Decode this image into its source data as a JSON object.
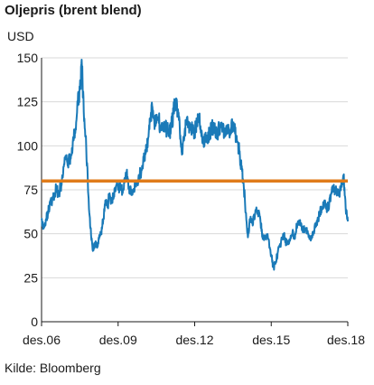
{
  "chart_data": {
    "type": "line",
    "title": "Oljepris (brent blend)",
    "ylabel": "USD",
    "source": "Kilde: Bloomberg",
    "ylim": [
      0,
      150
    ],
    "yticks": [
      0,
      25,
      50,
      75,
      100,
      125,
      150
    ],
    "xlim": [
      "2006-12",
      "2018-12"
    ],
    "xticks": [
      {
        "date": "2006-12",
        "label": "des.06"
      },
      {
        "date": "2009-12",
        "label": "des.09"
      },
      {
        "date": "2012-12",
        "label": "des.12"
      },
      {
        "date": "2015-12",
        "label": "des.15"
      },
      {
        "date": "2018-12",
        "label": "des.18"
      }
    ],
    "grid": "horizontal",
    "series": [
      {
        "color": "#1a7ab8",
        "points": [
          [
            "2006-12",
            58
          ],
          [
            "2007-01",
            53
          ],
          [
            "2007-02",
            58
          ],
          [
            "2007-03",
            62
          ],
          [
            "2007-04",
            67
          ],
          [
            "2007-05",
            69
          ],
          [
            "2007-06",
            71
          ],
          [
            "2007-07",
            77
          ],
          [
            "2007-08",
            72
          ],
          [
            "2007-09",
            77
          ],
          [
            "2007-10",
            82
          ],
          [
            "2007-11",
            92
          ],
          [
            "2007-12",
            91
          ],
          [
            "2008-01",
            92
          ],
          [
            "2008-02",
            95
          ],
          [
            "2008-03",
            103
          ],
          [
            "2008-04",
            110
          ],
          [
            "2008-05",
            123
          ],
          [
            "2008-06",
            133
          ],
          [
            "2008-07",
            145
          ],
          [
            "2008-08",
            114
          ],
          [
            "2008-09",
            100
          ],
          [
            "2008-10",
            72
          ],
          [
            "2008-11",
            53
          ],
          [
            "2008-12",
            41
          ],
          [
            "2009-01",
            44
          ],
          [
            "2009-02",
            43
          ],
          [
            "2009-03",
            47
          ],
          [
            "2009-04",
            50
          ],
          [
            "2009-05",
            58
          ],
          [
            "2009-06",
            69
          ],
          [
            "2009-07",
            65
          ],
          [
            "2009-08",
            73
          ],
          [
            "2009-09",
            68
          ],
          [
            "2009-10",
            73
          ],
          [
            "2009-11",
            77
          ],
          [
            "2009-12",
            75
          ],
          [
            "2010-01",
            77
          ],
          [
            "2010-02",
            74
          ],
          [
            "2010-03",
            79
          ],
          [
            "2010-04",
            85
          ],
          [
            "2010-05",
            76
          ],
          [
            "2010-06",
            75
          ],
          [
            "2010-07",
            75
          ],
          [
            "2010-08",
            77
          ],
          [
            "2010-09",
            78
          ],
          [
            "2010-10",
            83
          ],
          [
            "2010-11",
            86
          ],
          [
            "2010-12",
            91
          ],
          [
            "2011-01",
            96
          ],
          [
            "2011-02",
            103
          ],
          [
            "2011-03",
            114
          ],
          [
            "2011-04",
            123
          ],
          [
            "2011-05",
            114
          ],
          [
            "2011-06",
            113
          ],
          [
            "2011-07",
            116
          ],
          [
            "2011-08",
            110
          ],
          [
            "2011-09",
            112
          ],
          [
            "2011-10",
            109
          ],
          [
            "2011-11",
            110
          ],
          [
            "2011-12",
            107
          ],
          [
            "2012-01",
            111
          ],
          [
            "2012-02",
            119
          ],
          [
            "2012-03",
            125
          ],
          [
            "2012-04",
            120
          ],
          [
            "2012-05",
            110
          ],
          [
            "2012-06",
            95
          ],
          [
            "2012-07",
            103
          ],
          [
            "2012-08",
            113
          ],
          [
            "2012-09",
            113
          ],
          [
            "2012-10",
            111
          ],
          [
            "2012-11",
            109
          ],
          [
            "2012-12",
            109
          ],
          [
            "2013-01",
            112
          ],
          [
            "2013-02",
            116
          ],
          [
            "2013-03",
            109
          ],
          [
            "2013-04",
            102
          ],
          [
            "2013-05",
            103
          ],
          [
            "2013-06",
            103
          ],
          [
            "2013-07",
            107
          ],
          [
            "2013-08",
            111
          ],
          [
            "2013-09",
            111
          ],
          [
            "2013-10",
            109
          ],
          [
            "2013-11",
            108
          ],
          [
            "2013-12",
            111
          ],
          [
            "2014-01",
            108
          ],
          [
            "2014-02",
            109
          ],
          [
            "2014-03",
            107
          ],
          [
            "2014-04",
            108
          ],
          [
            "2014-05",
            110
          ],
          [
            "2014-06",
            112
          ],
          [
            "2014-07",
            107
          ],
          [
            "2014-08",
            102
          ],
          [
            "2014-09",
            97
          ],
          [
            "2014-10",
            87
          ],
          [
            "2014-11",
            79
          ],
          [
            "2014-12",
            62
          ],
          [
            "2015-01",
            48
          ],
          [
            "2015-02",
            58
          ],
          [
            "2015-03",
            56
          ],
          [
            "2015-04",
            60
          ],
          [
            "2015-05",
            65
          ],
          [
            "2015-06",
            62
          ],
          [
            "2015-07",
            56
          ],
          [
            "2015-08",
            47
          ],
          [
            "2015-09",
            48
          ],
          [
            "2015-10",
            49
          ],
          [
            "2015-11",
            45
          ],
          [
            "2015-12",
            38
          ],
          [
            "2016-01",
            31
          ],
          [
            "2016-02",
            33
          ],
          [
            "2016-03",
            39
          ],
          [
            "2016-04",
            43
          ],
          [
            "2016-05",
            47
          ],
          [
            "2016-06",
            49
          ],
          [
            "2016-07",
            45
          ],
          [
            "2016-08",
            46
          ],
          [
            "2016-09",
            47
          ],
          [
            "2016-10",
            51
          ],
          [
            "2016-11",
            47
          ],
          [
            "2016-12",
            55
          ],
          [
            "2017-01",
            55
          ],
          [
            "2017-02",
            56
          ],
          [
            "2017-03",
            52
          ],
          [
            "2017-04",
            53
          ],
          [
            "2017-05",
            51
          ],
          [
            "2017-06",
            47
          ],
          [
            "2017-07",
            49
          ],
          [
            "2017-08",
            51
          ],
          [
            "2017-09",
            56
          ],
          [
            "2017-10",
            58
          ],
          [
            "2017-11",
            63
          ],
          [
            "2017-12",
            64
          ],
          [
            "2018-01",
            69
          ],
          [
            "2018-02",
            65
          ],
          [
            "2018-03",
            66
          ],
          [
            "2018-04",
            72
          ],
          [
            "2018-05",
            77
          ],
          [
            "2018-06",
            74
          ],
          [
            "2018-07",
            74
          ],
          [
            "2018-08",
            73
          ],
          [
            "2018-09",
            79
          ],
          [
            "2018-10",
            83
          ],
          [
            "2018-11",
            65
          ],
          [
            "2018-12",
            57
          ]
        ]
      },
      {
        "color": "#e07b1a",
        "points": [
          [
            "2006-12",
            80
          ],
          [
            "2018-12",
            80
          ]
        ]
      }
    ]
  }
}
